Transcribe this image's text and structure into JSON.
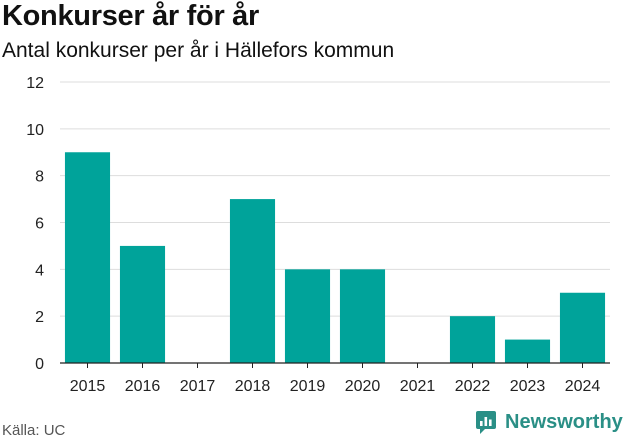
{
  "header": {
    "title": "Konkurser år för år",
    "subtitle": "Antal konkurser per år i Hällefors kommun"
  },
  "footer": {
    "source": "Källa: UC",
    "brand": "Newsworthy"
  },
  "colors": {
    "bar": "#00a39a",
    "grid": "#dddddd",
    "axis": "#222222",
    "brand": "#2a8f86"
  },
  "icons": {
    "brand_logo": "newsworthy-logo-icon"
  },
  "chart_data": {
    "type": "bar",
    "title": "Konkurser år för år",
    "subtitle": "Antal konkurser per år i Hällefors kommun",
    "categories": [
      "2015",
      "2016",
      "2017",
      "2018",
      "2019",
      "2020",
      "2021",
      "2022",
      "2023",
      "2024"
    ],
    "values": [
      9,
      5,
      0,
      7,
      4,
      4,
      0,
      2,
      1,
      3
    ],
    "ylim": [
      0,
      12
    ],
    "yticks": [
      0,
      2,
      4,
      6,
      8,
      10,
      12
    ],
    "xlabel": "",
    "ylabel": "",
    "grid": true,
    "legend": "none"
  }
}
